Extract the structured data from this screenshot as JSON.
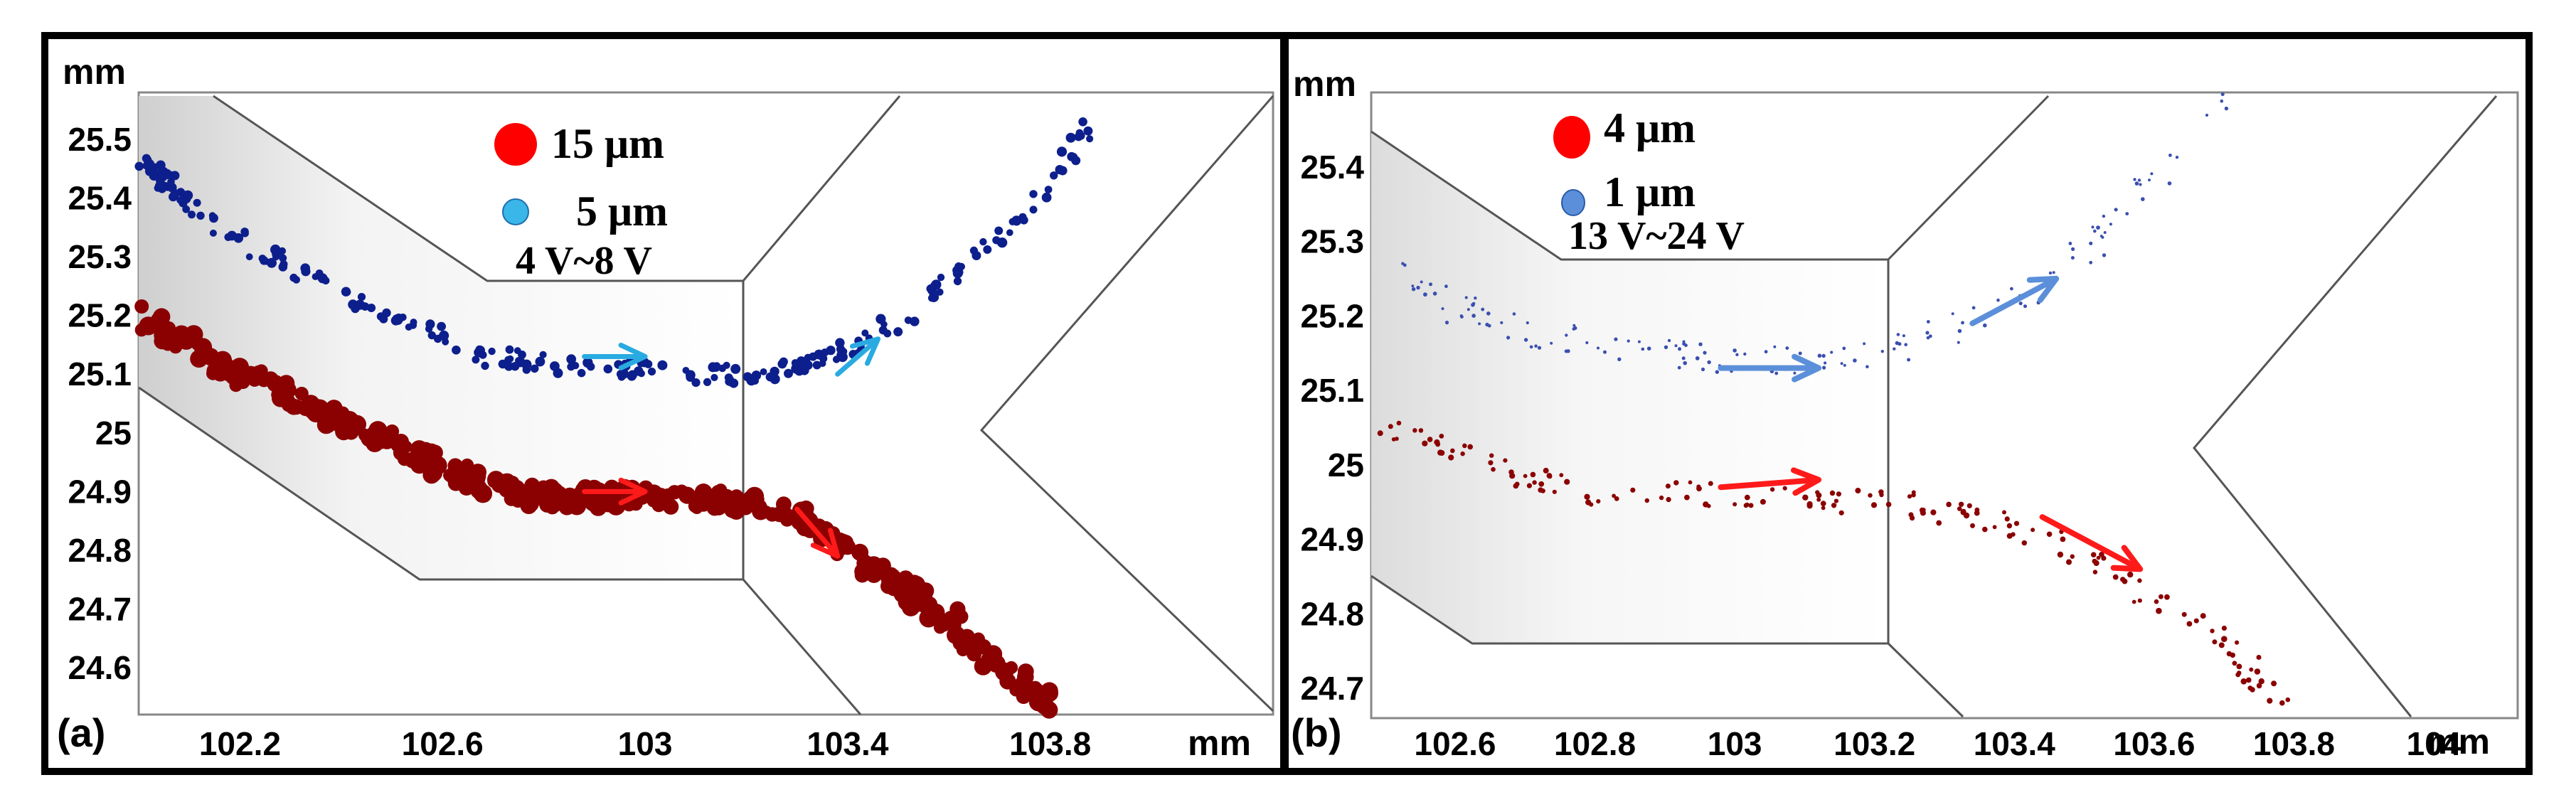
{
  "chart_data": [
    {
      "panel": "(a)",
      "type": "scatter",
      "unit_x": "mm",
      "unit_y": "mm",
      "xlim": [
        102.0,
        104.24
      ],
      "ylim": [
        24.52,
        25.58
      ],
      "xticks": [
        "102.2",
        "102.6",
        "103",
        "103.4",
        "103.8"
      ],
      "yticks": [
        "25.5",
        "25.4",
        "25.3",
        "25.2",
        "25.1",
        "25",
        "24.9",
        "24.8",
        "24.7",
        "24.6"
      ],
      "legend": [
        {
          "label": "15 μm",
          "color": "#ff0000"
        },
        {
          "label": "5 μm",
          "color": "#3ab6e8"
        }
      ],
      "voltage": "4 V~8 V",
      "channel_outline": [
        [
          102.0,
          25.56
        ],
        [
          102.14,
          25.56
        ],
        [
          102.68,
          25.27
        ],
        [
          103.24,
          25.27
        ],
        [
          103.24,
          25.27
        ],
        [
          103.48,
          25.55
        ],
        [
          103.48,
          25.55
        ]
      ],
      "series": [
        {
          "name": "5 μm particles",
          "color": "#0d1f8c",
          "x": [
            102.0,
            102.05,
            102.1,
            102.2,
            102.3,
            102.4,
            102.5,
            102.6,
            102.7,
            102.8,
            102.9,
            103.0,
            103.1,
            103.2,
            103.3,
            103.4,
            103.5,
            103.6,
            103.7,
            103.8,
            103.9
          ],
          "y": [
            25.47,
            25.43,
            25.39,
            25.33,
            25.28,
            25.24,
            25.2,
            25.16,
            25.13,
            25.12,
            25.11,
            25.11,
            25.1,
            25.1,
            25.11,
            25.14,
            25.19,
            25.26,
            25.33,
            25.42,
            25.56
          ]
        },
        {
          "name": "15 μm particles",
          "color": "#8b0000",
          "x": [
            102.0,
            102.1,
            102.2,
            102.3,
            102.4,
            102.5,
            102.6,
            102.7,
            102.8,
            102.9,
            103.0,
            103.1,
            103.2,
            103.3,
            103.4,
            103.5,
            103.6,
            103.7,
            103.8
          ],
          "y": [
            25.2,
            25.15,
            25.1,
            25.06,
            25.02,
            24.98,
            24.94,
            24.91,
            24.89,
            24.89,
            24.89,
            24.89,
            24.88,
            24.86,
            24.8,
            24.74,
            24.68,
            24.6,
            24.54
          ]
        }
      ],
      "arrows": [
        {
          "color": "#29abe2",
          "from": [
            102.88,
            25.13
          ],
          "to": [
            103.0,
            25.13
          ]
        },
        {
          "color": "#29abe2",
          "from": [
            103.38,
            25.1
          ],
          "to": [
            103.46,
            25.16
          ]
        },
        {
          "color": "#ff1a1a",
          "from": [
            102.88,
            24.9
          ],
          "to": [
            103.0,
            24.9
          ]
        },
        {
          "color": "#ff1a1a",
          "from": [
            103.3,
            24.87
          ],
          "to": [
            103.38,
            24.79
          ]
        }
      ]
    },
    {
      "panel": "(b)",
      "type": "scatter",
      "unit_x": "mm",
      "unit_y": "mm",
      "xlim": [
        102.48,
        104.12
      ],
      "ylim": [
        24.66,
        25.5
      ],
      "xticks": [
        "102.6",
        "102.8",
        "103",
        "103.2",
        "103.4",
        "103.6",
        "103.8",
        "104"
      ],
      "yticks": [
        "25.4",
        "25.3",
        "25.2",
        "25.1",
        "25",
        "24.9",
        "24.8",
        "24.7"
      ],
      "legend": [
        {
          "label": "4 μm",
          "color": "#ff0000"
        },
        {
          "label": "1 μm",
          "color": "#5b8fd9"
        }
      ],
      "voltage": "13 V~24 V",
      "series": [
        {
          "name": "1 μm particles",
          "color": "#3a4fb0",
          "x": [
            102.5,
            102.6,
            102.7,
            102.8,
            102.9,
            103.0,
            103.1,
            103.2,
            103.3,
            103.4,
            103.5,
            103.6,
            103.7
          ],
          "y": [
            25.27,
            25.21,
            25.18,
            25.16,
            25.15,
            25.14,
            25.14,
            25.15,
            25.18,
            25.22,
            25.29,
            25.38,
            25.48
          ]
        },
        {
          "name": "4 μm particles",
          "color": "#8b0000",
          "x": [
            102.5,
            102.6,
            102.7,
            102.8,
            102.9,
            103.0,
            103.1,
            103.2,
            103.3,
            103.4,
            103.5,
            103.6,
            103.7,
            103.78
          ],
          "y": [
            25.05,
            25.02,
            24.98,
            24.96,
            24.96,
            24.96,
            24.96,
            24.95,
            24.94,
            24.92,
            24.88,
            24.82,
            24.76,
            24.68
          ]
        }
      ],
      "arrows": [
        {
          "color": "#5b8fd9",
          "from": [
            102.98,
            25.13
          ],
          "to": [
            103.12,
            25.13
          ]
        },
        {
          "color": "#5b8fd9",
          "from": [
            103.34,
            25.19
          ],
          "to": [
            103.46,
            25.25
          ]
        },
        {
          "color": "#ff1a1a",
          "from": [
            102.98,
            24.97
          ],
          "to": [
            103.12,
            24.98
          ]
        },
        {
          "color": "#ff1a1a",
          "from": [
            103.44,
            24.93
          ],
          "to": [
            103.58,
            24.86
          ]
        }
      ]
    }
  ]
}
